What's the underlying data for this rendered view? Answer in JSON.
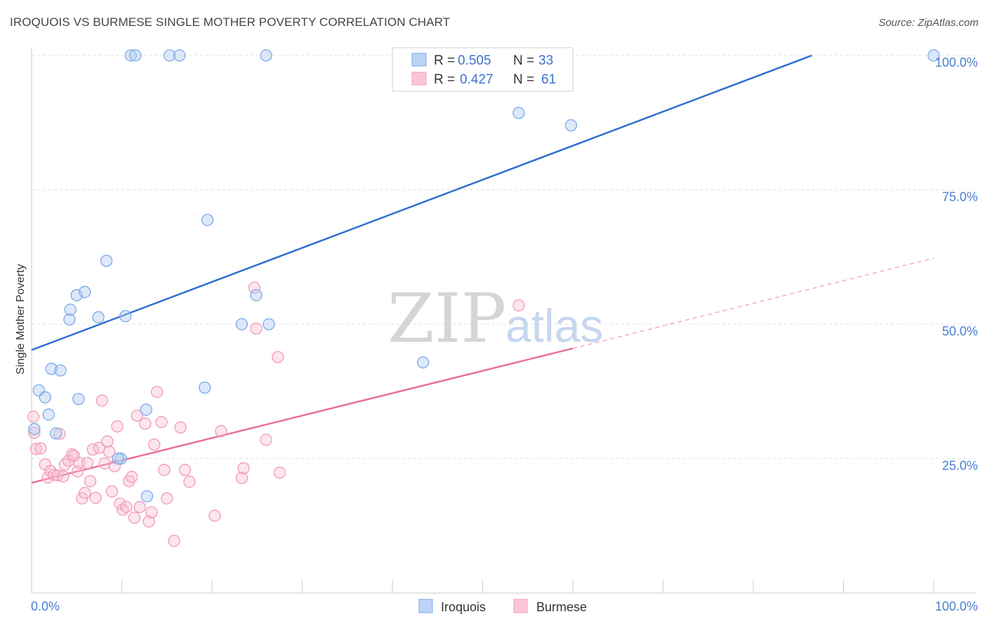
{
  "header": {
    "title": "IROQUOIS VS BURMESE SINGLE MOTHER POVERTY CORRELATION CHART",
    "source": "Source: ZipAtlas.com"
  },
  "watermark": {
    "zip": "ZIP",
    "atlas": "atlas"
  },
  "legend": {
    "rows": [
      {
        "r_label": "R =",
        "r_value": "0.505",
        "n_label": "N =",
        "n_value": "33"
      },
      {
        "r_label": "R =",
        "r_value": "0.427",
        "n_label": "N =",
        "n_value": "61"
      }
    ]
  },
  "chart_data": {
    "type": "scatter",
    "title": "IROQUOIS VS BURMESE SINGLE MOTHER POVERTY CORRELATION CHART",
    "xlabel": "",
    "ylabel": "Single Mother Poverty",
    "xlim": [
      0,
      100
    ],
    "ylim": [
      0,
      102
    ],
    "x_tick_labels": [
      "0.0%",
      "100.0%"
    ],
    "y_ticks": [
      25,
      50,
      75,
      100
    ],
    "y_tick_labels": [
      "25.0%",
      "50.0%",
      "75.0%",
      "100.0%"
    ],
    "grid": true,
    "legend_position": "top-center",
    "colors": {
      "iroquois": "#7aaae8",
      "burmese": "#f29bb8",
      "iroquois_line": "#2e6fd0",
      "burmese_line": "#e8709a"
    },
    "series": [
      {
        "name": "Iroquois",
        "r": 0.505,
        "n": 33,
        "trend": {
          "x0": 0,
          "y0": 45.2,
          "x1": 86.5,
          "y1": 100
        },
        "points": [
          [
            0.8,
            37.7
          ],
          [
            1.5,
            36.4
          ],
          [
            1.9,
            33.2
          ],
          [
            2.2,
            41.7
          ],
          [
            3.2,
            41.4
          ],
          [
            2.7,
            29.7
          ],
          [
            4.2,
            50.9
          ],
          [
            4.3,
            52.7
          ],
          [
            5.0,
            55.4
          ],
          [
            5.9,
            56.0
          ],
          [
            5.2,
            36.1
          ],
          [
            7.4,
            51.3
          ],
          [
            8.3,
            61.8
          ],
          [
            9.9,
            25.0
          ],
          [
            10.4,
            51.5
          ],
          [
            11.0,
            100
          ],
          [
            11.5,
            100
          ],
          [
            12.7,
            34.1
          ],
          [
            12.8,
            18.0
          ],
          [
            15.3,
            100
          ],
          [
            16.4,
            100
          ],
          [
            19.2,
            38.2
          ],
          [
            19.5,
            69.4
          ],
          [
            23.3,
            50.0
          ],
          [
            24.9,
            55.4
          ],
          [
            26.3,
            50.0
          ],
          [
            26.0,
            100
          ],
          [
            43.4,
            42.9
          ],
          [
            54.0,
            89.3
          ],
          [
            59.8,
            87.0
          ],
          [
            100,
            100
          ],
          [
            0.3,
            30.5
          ],
          [
            9.6,
            25.0
          ]
        ]
      },
      {
        "name": "Burmese",
        "r": 0.427,
        "n": 61,
        "trend": {
          "x0": 0,
          "y0": 20.5,
          "x1": 60,
          "y1": 45.5,
          "dash_x1": 100,
          "dash_y1": 62.3
        },
        "points": [
          [
            0.2,
            32.8
          ],
          [
            0.5,
            26.8
          ],
          [
            1.0,
            26.9
          ],
          [
            1.5,
            23.9
          ],
          [
            1.8,
            21.5
          ],
          [
            2.1,
            22.7
          ],
          [
            2.5,
            22.0
          ],
          [
            2.9,
            21.9
          ],
          [
            3.1,
            29.6
          ],
          [
            3.5,
            21.7
          ],
          [
            3.7,
            23.9
          ],
          [
            4.1,
            24.6
          ],
          [
            4.5,
            25.8
          ],
          [
            4.7,
            25.5
          ],
          [
            5.1,
            22.6
          ],
          [
            5.3,
            24.2
          ],
          [
            5.6,
            17.6
          ],
          [
            5.9,
            18.6
          ],
          [
            6.2,
            24.2
          ],
          [
            6.5,
            20.8
          ],
          [
            6.8,
            26.7
          ],
          [
            7.1,
            17.7
          ],
          [
            7.5,
            27.0
          ],
          [
            7.8,
            35.8
          ],
          [
            8.1,
            24.1
          ],
          [
            8.4,
            28.2
          ],
          [
            8.6,
            26.3
          ],
          [
            8.9,
            18.9
          ],
          [
            9.2,
            23.6
          ],
          [
            9.5,
            31.0
          ],
          [
            9.8,
            16.6
          ],
          [
            10.1,
            15.5
          ],
          [
            10.5,
            16.0
          ],
          [
            10.8,
            20.8
          ],
          [
            11.1,
            21.6
          ],
          [
            11.4,
            14.0
          ],
          [
            11.7,
            33.0
          ],
          [
            12.0,
            16.0
          ],
          [
            12.6,
            31.5
          ],
          [
            13.0,
            13.3
          ],
          [
            13.3,
            15.0
          ],
          [
            13.6,
            27.6
          ],
          [
            13.9,
            37.4
          ],
          [
            14.4,
            31.8
          ],
          [
            14.7,
            22.9
          ],
          [
            15.0,
            17.6
          ],
          [
            15.8,
            9.7
          ],
          [
            16.5,
            30.8
          ],
          [
            17.0,
            22.9
          ],
          [
            17.5,
            20.7
          ],
          [
            20.3,
            14.4
          ],
          [
            21.0,
            30.1
          ],
          [
            23.3,
            21.4
          ],
          [
            23.5,
            23.2
          ],
          [
            24.7,
            56.8
          ],
          [
            24.9,
            49.2
          ],
          [
            26.0,
            28.5
          ],
          [
            27.3,
            43.9
          ],
          [
            27.5,
            22.4
          ],
          [
            54.0,
            53.5
          ],
          [
            0.3,
            29.8
          ]
        ]
      }
    ]
  },
  "bottom_legend": {
    "iroquois": "Iroquois",
    "burmese": "Burmese"
  }
}
